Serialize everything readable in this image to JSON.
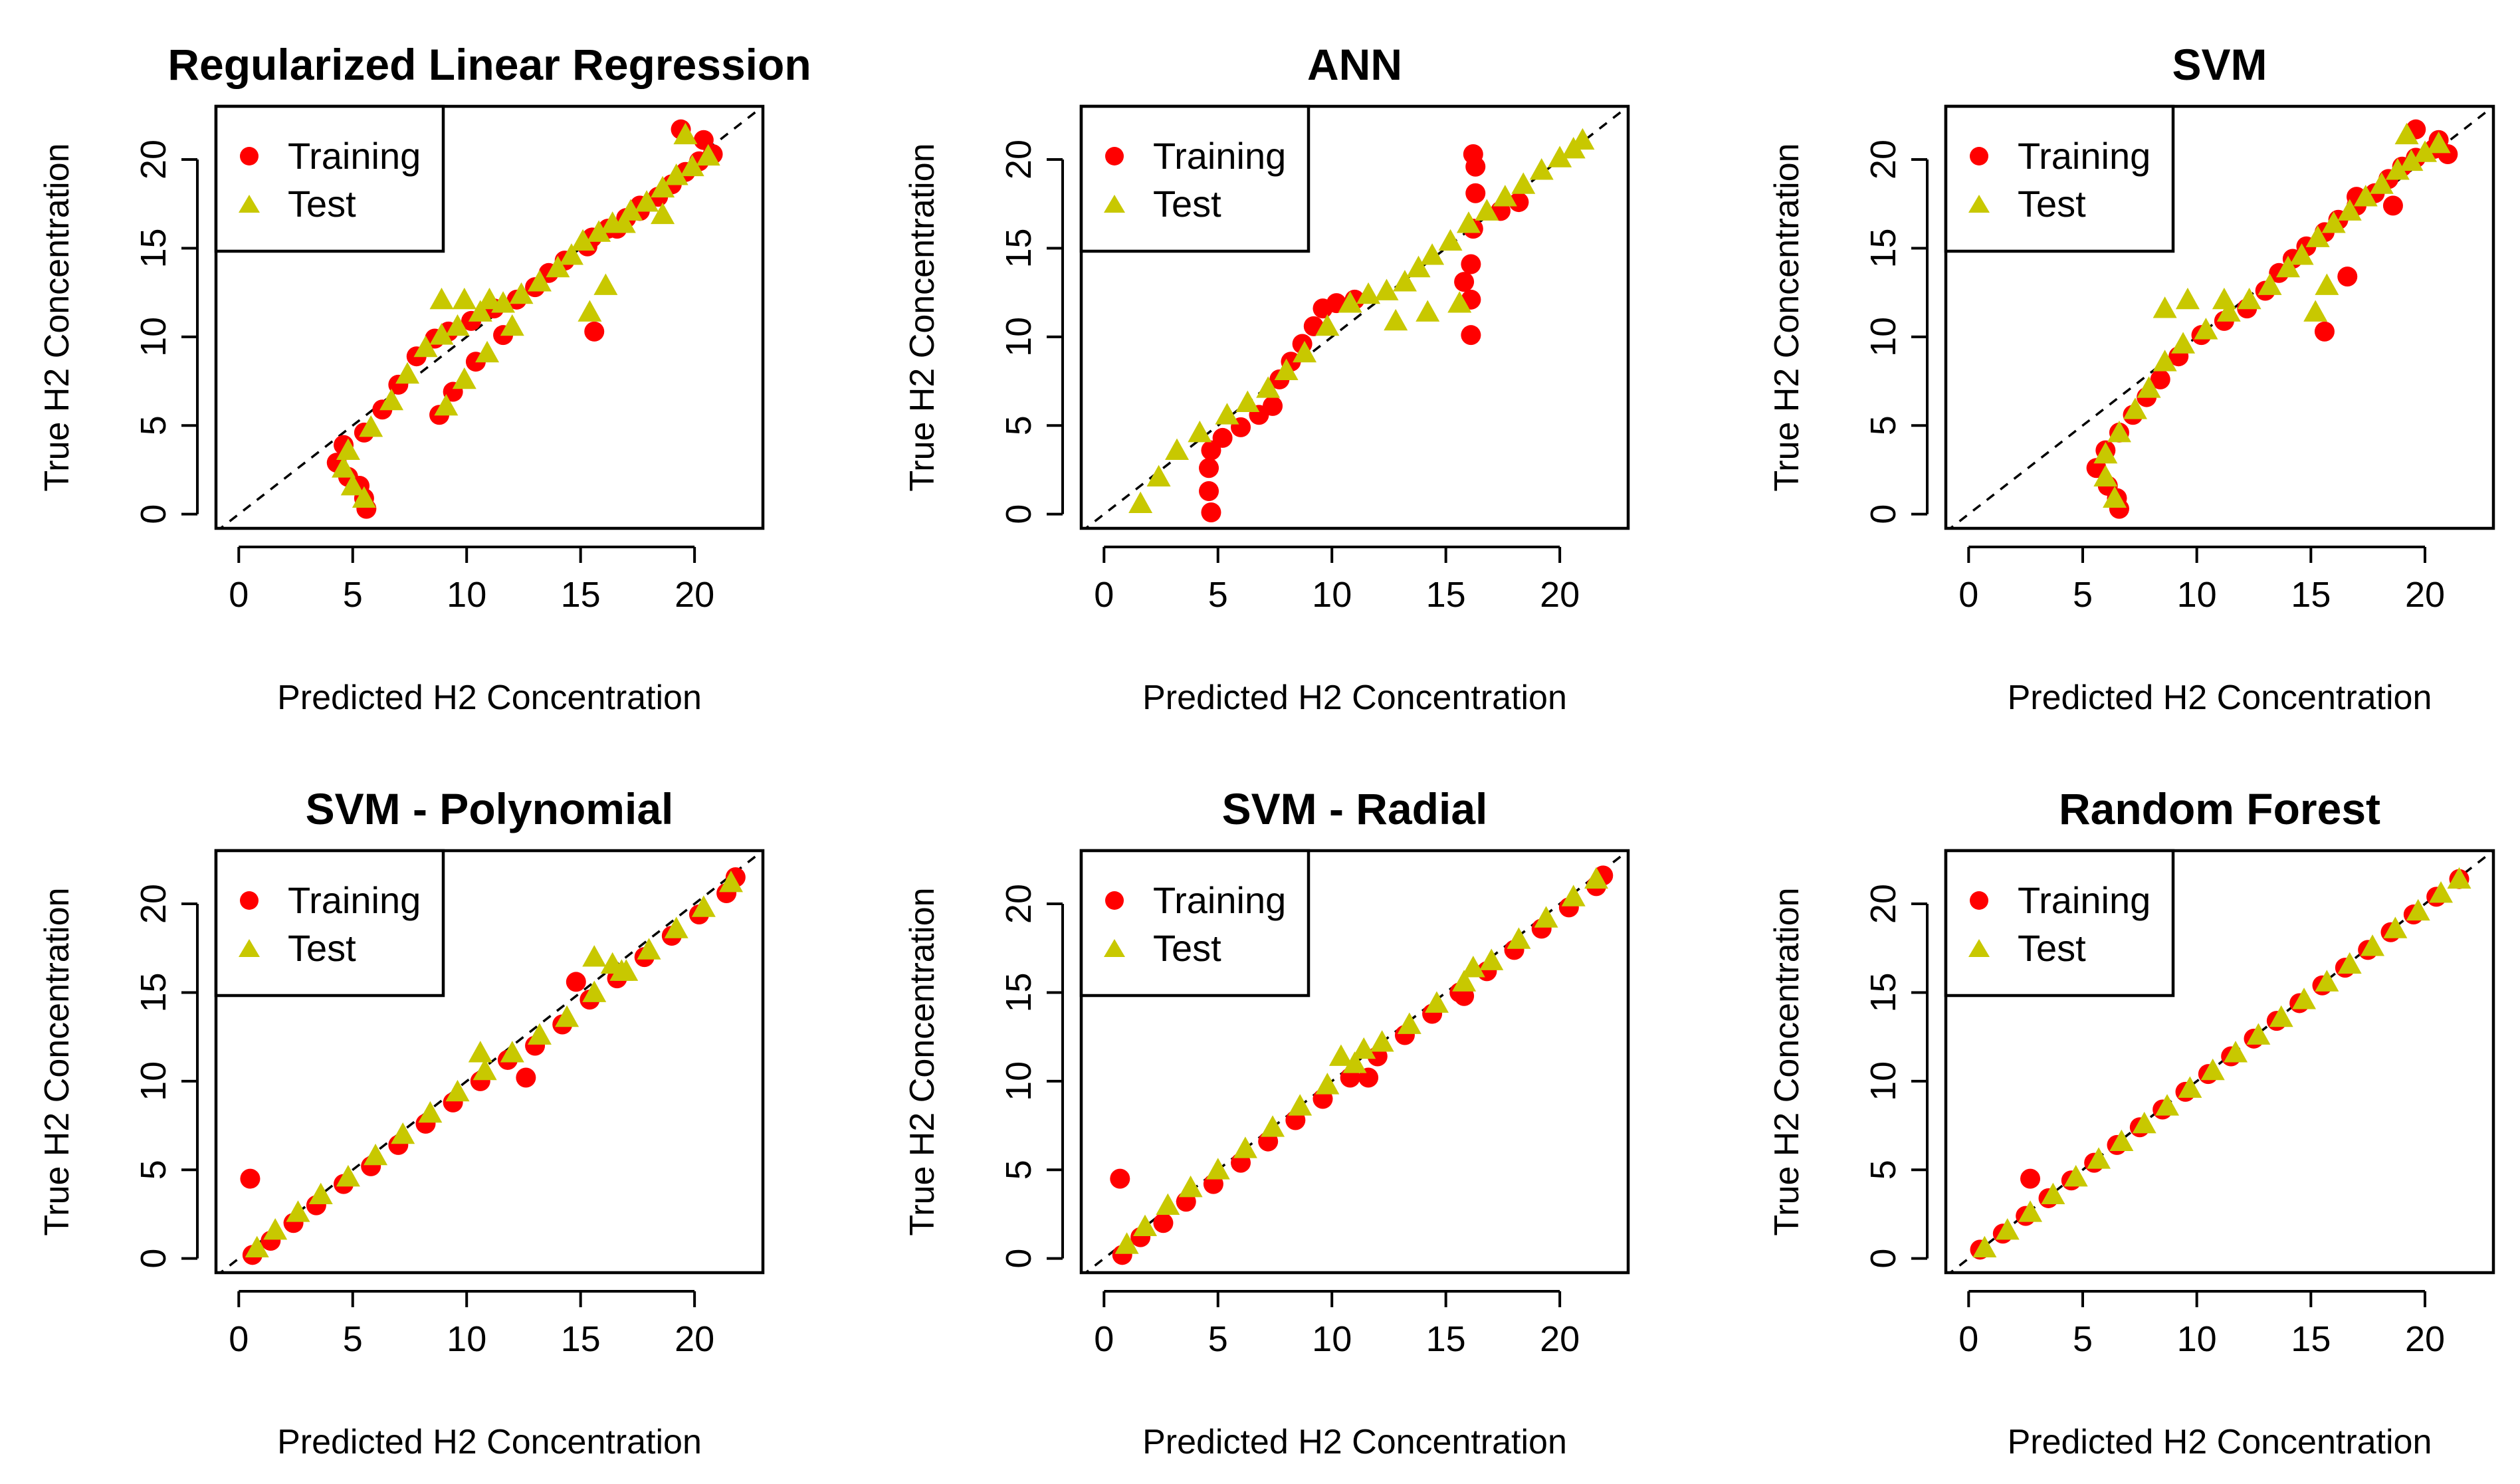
{
  "figure": {
    "series_styles": {
      "training": {
        "color": "#ff0000",
        "marker": "circle"
      },
      "test": {
        "color": "#c8c800",
        "marker": "triangle"
      }
    }
  },
  "chart_data": [
    {
      "type": "scatter",
      "title": "Regularized Linear Regression",
      "xlabel": "Predicted H2 Concentration",
      "ylabel": "True H2 Concentration",
      "xlim": [
        -1,
        23
      ],
      "ylim": [
        -0.8,
        23
      ],
      "xticks": [
        0,
        5,
        10,
        15,
        20
      ],
      "yticks": [
        0,
        5,
        10,
        15,
        20
      ],
      "xtick_labels": [
        "0",
        "5",
        "10",
        "15",
        "20"
      ],
      "ytick_labels": [
        "0",
        "5",
        "10",
        "15",
        "20"
      ],
      "reference_line": "y = x",
      "legend": {
        "position": "top-left",
        "entries": [
          "Training",
          "Test"
        ]
      },
      "series": [
        {
          "name": "Training",
          "color": "#ff0000",
          "marker": "circle",
          "x": [
            5.6,
            5.5,
            5.3,
            4.8,
            4.3,
            4.6,
            5.5,
            6.3,
            7.0,
            7.8,
            8.6,
            9.2,
            10.2,
            11.2,
            12.2,
            13.0,
            13.6,
            14.3,
            15.3,
            15.5,
            16.2,
            17.0,
            17.6,
            18.4,
            19.0,
            19.6,
            20.2,
            20.8,
            20.4,
            19.4,
            17.6,
            16.6,
            15.6,
            8.8,
            9.4,
            10.4,
            11.6
          ],
          "y": [
            0.3,
            0.9,
            1.6,
            2.1,
            2.9,
            3.9,
            4.6,
            5.9,
            7.3,
            8.9,
            9.9,
            10.3,
            10.9,
            11.6,
            12.1,
            12.8,
            13.6,
            14.3,
            15.1,
            15.6,
            16.1,
            16.7,
            17.4,
            17.9,
            18.6,
            19.3,
            19.9,
            20.3,
            21.1,
            21.7,
            17.1,
            16.1,
            10.3,
            5.6,
            6.9,
            8.6,
            10.1
          ]
        },
        {
          "name": "Test",
          "color": "#c8c800",
          "marker": "triangle",
          "x": [
            5.5,
            5.0,
            4.6,
            4.8,
            5.8,
            6.7,
            7.4,
            8.2,
            8.9,
            9.6,
            10.6,
            11.6,
            12.4,
            13.2,
            14.0,
            14.6,
            15.1,
            15.8,
            16.4,
            17.2,
            17.9,
            18.6,
            19.2,
            19.9,
            20.6,
            19.6,
            18.6,
            16.9,
            16.1,
            15.4,
            9.1,
            9.9,
            10.9,
            12.0,
            8.9,
            9.9,
            11.0
          ],
          "y": [
            0.9,
            1.6,
            2.6,
            3.6,
            4.9,
            6.4,
            7.9,
            9.4,
            10.1,
            10.6,
            11.4,
            11.9,
            12.4,
            13.1,
            13.9,
            14.6,
            15.4,
            15.9,
            16.4,
            17.1,
            17.6,
            18.4,
            19.1,
            19.6,
            20.2,
            21.4,
            16.9,
            16.4,
            12.9,
            11.4,
            6.1,
            7.6,
            9.1,
            10.6,
            12.1,
            12.1,
            12.1
          ]
        }
      ]
    },
    {
      "type": "scatter",
      "title": "ANN",
      "xlabel": "Predicted H2 Concentration",
      "ylabel": "True H2 Concentration",
      "xlim": [
        -1,
        23
      ],
      "ylim": [
        -0.8,
        23
      ],
      "xticks": [
        0,
        5,
        10,
        15,
        20
      ],
      "yticks": [
        0,
        5,
        10,
        15,
        20
      ],
      "xtick_labels": [
        "0",
        "5",
        "10",
        "15",
        "20"
      ],
      "ytick_labels": [
        "0",
        "5",
        "10",
        "15",
        "20"
      ],
      "reference_line": "y = x",
      "legend": {
        "position": "top-left",
        "entries": [
          "Training",
          "Test"
        ]
      },
      "series": [
        {
          "name": "Training",
          "color": "#ff0000",
          "marker": "circle",
          "x": [
            4.7,
            4.6,
            4.6,
            4.7,
            5.2,
            6.0,
            6.8,
            7.4,
            7.7,
            8.2,
            8.7,
            9.2,
            9.6,
            10.2,
            11.0,
            16.1,
            16.1,
            16.1,
            16.2,
            16.3,
            16.3,
            16.2,
            15.8,
            17.4,
            18.2
          ],
          "y": [
            0.1,
            1.3,
            2.6,
            3.6,
            4.3,
            4.9,
            5.6,
            6.1,
            7.6,
            8.6,
            9.6,
            10.6,
            11.6,
            11.9,
            12.1,
            10.1,
            12.1,
            14.1,
            16.1,
            18.1,
            19.6,
            20.3,
            13.1,
            17.1,
            17.6
          ]
        },
        {
          "name": "Test",
          "color": "#c8c800",
          "marker": "triangle",
          "x": [
            1.6,
            2.4,
            3.2,
            4.2,
            5.4,
            6.3,
            7.2,
            8.0,
            8.8,
            9.8,
            10.8,
            11.6,
            12.4,
            13.2,
            13.8,
            14.4,
            15.2,
            16.0,
            16.8,
            17.6,
            18.4,
            19.2,
            20.0,
            20.6,
            21.0,
            12.8,
            14.2,
            15.6
          ],
          "y": [
            0.6,
            2.1,
            3.6,
            4.6,
            5.6,
            6.3,
            7.1,
            8.1,
            9.1,
            10.6,
            11.9,
            12.4,
            12.6,
            13.1,
            13.9,
            14.6,
            15.4,
            16.4,
            17.1,
            17.9,
            18.6,
            19.4,
            20.1,
            20.6,
            21.1,
            10.9,
            11.4,
            11.9
          ]
        }
      ]
    },
    {
      "type": "scatter",
      "title": "SVM",
      "xlabel": "Predicted H2 Concentration",
      "ylabel": "True H2 Concentration",
      "xlim": [
        -1,
        23
      ],
      "ylim": [
        -0.8,
        23
      ],
      "xticks": [
        0,
        5,
        10,
        15,
        20
      ],
      "yticks": [
        0,
        5,
        10,
        15,
        20
      ],
      "xtick_labels": [
        "0",
        "5",
        "10",
        "15",
        "20"
      ],
      "ytick_labels": [
        "0",
        "5",
        "10",
        "15",
        "20"
      ],
      "reference_line": "y = x",
      "legend": {
        "position": "top-left",
        "entries": [
          "Training",
          "Test"
        ]
      },
      "series": [
        {
          "name": "Training",
          "color": "#ff0000",
          "marker": "circle",
          "x": [
            6.6,
            6.5,
            6.1,
            5.6,
            6.0,
            6.6,
            7.2,
            7.8,
            8.4,
            9.2,
            10.2,
            11.2,
            12.2,
            13.0,
            13.6,
            14.2,
            14.8,
            15.6,
            16.2,
            17.0,
            17.8,
            18.4,
            19.0,
            19.6,
            20.4,
            21.0,
            20.6,
            19.6,
            18.6,
            17.0,
            16.6,
            15.6
          ],
          "y": [
            0.3,
            0.9,
            1.6,
            2.6,
            3.6,
            4.6,
            5.6,
            6.6,
            7.6,
            8.9,
            10.1,
            10.9,
            11.6,
            12.6,
            13.6,
            14.4,
            15.1,
            15.9,
            16.6,
            17.4,
            18.1,
            18.9,
            19.6,
            20.1,
            20.6,
            20.3,
            21.1,
            21.7,
            17.4,
            17.9,
            13.4,
            10.3
          ]
        },
        {
          "name": "Test",
          "color": "#c8c800",
          "marker": "triangle",
          "x": [
            6.4,
            6.0,
            6.0,
            6.6,
            7.3,
            7.9,
            8.6,
            9.4,
            10.4,
            11.4,
            12.3,
            13.2,
            14.0,
            14.6,
            15.3,
            16.0,
            16.7,
            17.4,
            18.1,
            18.8,
            19.4,
            20.0,
            20.6,
            19.2,
            15.2,
            15.7,
            8.6,
            9.6,
            11.2
          ],
          "y": [
            0.9,
            2.1,
            3.4,
            4.6,
            5.9,
            7.1,
            8.6,
            9.6,
            10.4,
            11.4,
            12.1,
            12.9,
            13.9,
            14.6,
            15.6,
            16.4,
            17.1,
            17.9,
            18.6,
            19.4,
            19.9,
            20.4,
            20.9,
            21.4,
            11.4,
            12.9,
            11.6,
            12.1,
            12.1
          ]
        }
      ]
    },
    {
      "type": "scatter",
      "title": "SVM - Polynomial",
      "xlabel": "Predicted H2 Concentration",
      "ylabel": "True H2 Concentration",
      "xlim": [
        -1,
        23
      ],
      "ylim": [
        -0.8,
        23
      ],
      "xticks": [
        0,
        5,
        10,
        15,
        20
      ],
      "yticks": [
        0,
        5,
        10,
        15,
        20
      ],
      "xtick_labels": [
        "0",
        "5",
        "10",
        "15",
        "20"
      ],
      "ytick_labels": [
        "0",
        "5",
        "10",
        "15",
        "20"
      ],
      "reference_line": "y = x",
      "legend": {
        "position": "top-left",
        "entries": [
          "Training",
          "Test"
        ]
      },
      "series": [
        {
          "name": "Training",
          "color": "#ff0000",
          "marker": "circle",
          "x": [
            0.5,
            0.6,
            1.4,
            2.4,
            3.4,
            4.6,
            5.8,
            7.0,
            8.2,
            9.4,
            10.6,
            11.8,
            13.0,
            14.2,
            15.4,
            16.6,
            17.8,
            19.0,
            20.2,
            21.4,
            21.8,
            12.6,
            14.8
          ],
          "y": [
            4.5,
            0.2,
            1.0,
            2.0,
            3.0,
            4.2,
            5.2,
            6.4,
            7.6,
            8.8,
            10.0,
            11.2,
            12.0,
            13.2,
            14.6,
            15.8,
            17.0,
            18.2,
            19.4,
            20.6,
            21.5,
            10.2,
            15.6
          ]
        },
        {
          "name": "Test",
          "color": "#c8c800",
          "marker": "triangle",
          "x": [
            0.8,
            1.6,
            2.6,
            3.6,
            4.8,
            6.0,
            7.2,
            8.4,
            9.6,
            10.8,
            12.0,
            13.2,
            14.4,
            15.6,
            16.8,
            18.0,
            19.2,
            20.4,
            21.6,
            10.6,
            15.6,
            16.4,
            17.0
          ],
          "y": [
            0.6,
            1.6,
            2.6,
            3.6,
            4.6,
            5.8,
            7.0,
            8.2,
            9.4,
            10.6,
            11.6,
            12.6,
            13.6,
            15.0,
            16.2,
            17.4,
            18.6,
            19.8,
            21.2,
            11.6,
            17.0,
            16.6,
            16.2
          ]
        }
      ]
    },
    {
      "type": "scatter",
      "title": "SVM - Radial",
      "xlabel": "Predicted H2 Concentration",
      "ylabel": "True H2 Concentration",
      "xlim": [
        -1,
        23
      ],
      "ylim": [
        -0.8,
        23
      ],
      "xticks": [
        0,
        5,
        10,
        15,
        20
      ],
      "yticks": [
        0,
        5,
        10,
        15,
        20
      ],
      "xtick_labels": [
        "0",
        "5",
        "10",
        "15",
        "20"
      ],
      "ytick_labels": [
        "0",
        "5",
        "10",
        "15",
        "20"
      ],
      "reference_line": "y = x",
      "legend": {
        "position": "top-left",
        "entries": [
          "Training",
          "Test"
        ]
      },
      "series": [
        {
          "name": "Training",
          "color": "#ff0000",
          "marker": "circle",
          "x": [
            0.7,
            0.8,
            1.6,
            2.6,
            3.6,
            4.8,
            6.0,
            7.2,
            8.4,
            9.6,
            10.8,
            12.0,
            13.2,
            14.4,
            15.6,
            16.8,
            18.0,
            19.2,
            20.4,
            21.6,
            21.9,
            11.6,
            15.8
          ],
          "y": [
            4.5,
            0.2,
            1.2,
            2.0,
            3.2,
            4.2,
            5.4,
            6.6,
            7.8,
            9.0,
            10.2,
            11.4,
            12.6,
            13.8,
            15.0,
            16.2,
            17.4,
            18.6,
            19.8,
            21.0,
            21.6,
            10.2,
            14.8
          ]
        },
        {
          "name": "Test",
          "color": "#c8c800",
          "marker": "triangle",
          "x": [
            1.0,
            1.8,
            2.8,
            3.8,
            5.0,
            6.2,
            7.4,
            8.6,
            9.8,
            11.0,
            12.2,
            13.4,
            14.6,
            15.8,
            17.0,
            18.2,
            19.4,
            20.6,
            21.6,
            10.4,
            11.4,
            16.2
          ],
          "y": [
            0.8,
            1.8,
            3.0,
            4.0,
            5.0,
            6.2,
            7.4,
            8.6,
            9.8,
            11.0,
            12.2,
            13.2,
            14.4,
            15.6,
            16.8,
            18.0,
            19.2,
            20.4,
            21.4,
            11.4,
            11.8,
            16.4
          ]
        }
      ]
    },
    {
      "type": "scatter",
      "title": "Random Forest",
      "xlabel": "Predicted H2 Concentration",
      "ylabel": "True H2 Concentration",
      "xlim": [
        -1,
        23
      ],
      "ylim": [
        -0.8,
        23
      ],
      "xticks": [
        0,
        5,
        10,
        15,
        20
      ],
      "yticks": [
        0,
        5,
        10,
        15,
        20
      ],
      "xtick_labels": [
        "0",
        "5",
        "10",
        "15",
        "20"
      ],
      "ytick_labels": [
        "0",
        "5",
        "10",
        "15",
        "20"
      ],
      "reference_line": "y = x",
      "legend": {
        "position": "top-left",
        "entries": [
          "Training",
          "Test"
        ]
      },
      "series": [
        {
          "name": "Training",
          "color": "#ff0000",
          "marker": "circle",
          "x": [
            2.7,
            0.5,
            1.5,
            2.5,
            3.5,
            4.5,
            5.5,
            6.5,
            7.5,
            8.5,
            9.5,
            10.5,
            11.5,
            12.5,
            13.5,
            14.5,
            15.5,
            16.5,
            17.5,
            18.5,
            19.5,
            20.5,
            21.5
          ],
          "y": [
            4.5,
            0.5,
            1.4,
            2.4,
            3.4,
            4.4,
            5.4,
            6.4,
            7.4,
            8.4,
            9.4,
            10.4,
            11.4,
            12.4,
            13.4,
            14.4,
            15.4,
            16.4,
            17.4,
            18.4,
            19.4,
            20.4,
            21.4
          ]
        },
        {
          "name": "Test",
          "color": "#c8c800",
          "marker": "triangle",
          "x": [
            0.7,
            1.7,
            2.7,
            3.7,
            4.7,
            5.7,
            6.7,
            7.7,
            8.7,
            9.7,
            10.7,
            11.7,
            12.7,
            13.7,
            14.7,
            15.7,
            16.7,
            17.7,
            18.7,
            19.7,
            20.7,
            21.5
          ],
          "y": [
            0.6,
            1.6,
            2.6,
            3.6,
            4.6,
            5.6,
            6.6,
            7.6,
            8.6,
            9.6,
            10.6,
            11.6,
            12.6,
            13.6,
            14.6,
            15.6,
            16.6,
            17.6,
            18.6,
            19.6,
            20.6,
            21.4
          ]
        }
      ]
    }
  ]
}
